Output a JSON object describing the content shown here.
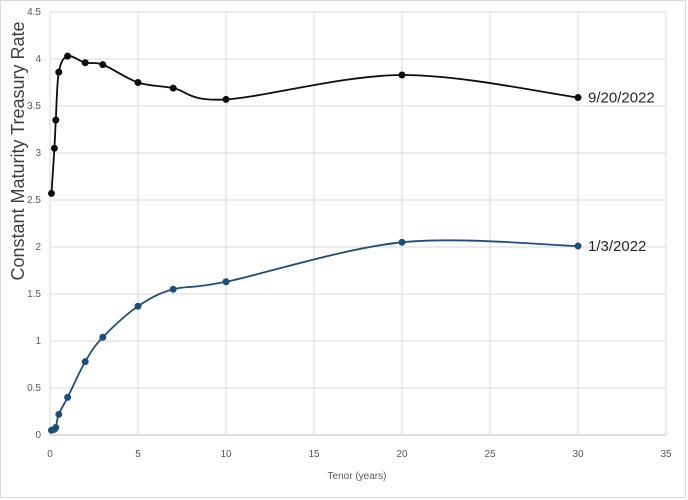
{
  "chart_data": {
    "type": "line",
    "title": "",
    "xlabel": "Tenor (years)",
    "ylabel": "Constant Maturity Treasury Rate",
    "xlim": [
      0,
      35
    ],
    "ylim": [
      0,
      4.5
    ],
    "x_ticks": [
      "0",
      "5",
      "10",
      "15",
      "20",
      "25",
      "30",
      "35"
    ],
    "y_ticks": [
      "0",
      "0.5",
      "1",
      "1.5",
      "2",
      "2.5",
      "3",
      "3.5",
      "4",
      "4.5"
    ],
    "grid": true,
    "smooth": true,
    "series": [
      {
        "name": "9/20/2022",
        "color": "#0d0d0d",
        "points": [
          [
            0.083,
            2.57
          ],
          [
            0.25,
            3.05
          ],
          [
            0.33,
            3.35
          ],
          [
            0.5,
            3.86
          ],
          [
            1,
            4.03
          ],
          [
            2,
            3.96
          ],
          [
            3,
            3.94
          ],
          [
            5,
            3.75
          ],
          [
            7,
            3.69
          ],
          [
            10,
            3.57
          ],
          [
            20,
            3.83
          ],
          [
            30,
            3.59
          ]
        ]
      },
      {
        "name": "1/3/2022",
        "color": "#1f4e79",
        "points": [
          [
            0.083,
            0.05
          ],
          [
            0.25,
            0.06
          ],
          [
            0.33,
            0.08
          ],
          [
            0.5,
            0.22
          ],
          [
            1,
            0.4
          ],
          [
            2,
            0.78
          ],
          [
            3,
            1.04
          ],
          [
            5,
            1.37
          ],
          [
            7,
            1.55
          ],
          [
            10,
            1.63
          ],
          [
            20,
            2.05
          ],
          [
            30,
            2.01
          ]
        ]
      }
    ]
  }
}
